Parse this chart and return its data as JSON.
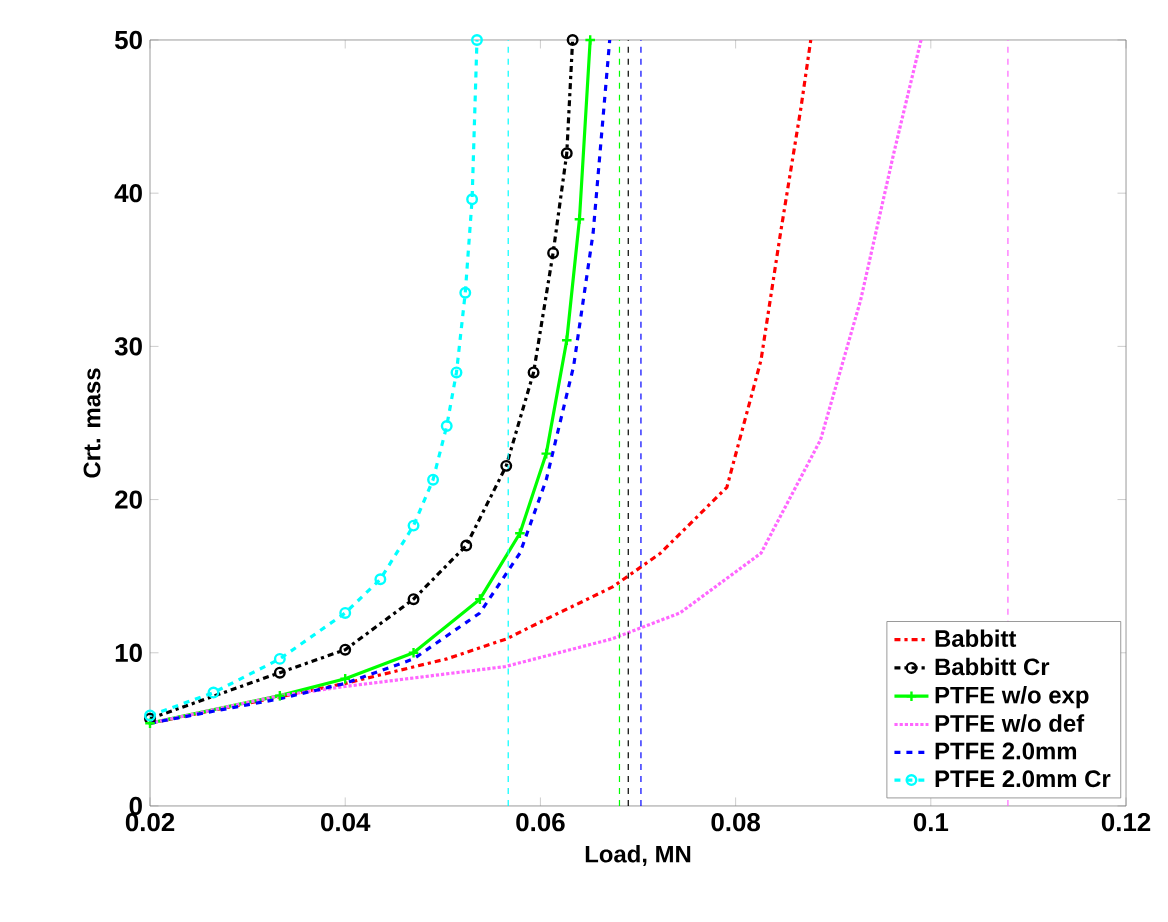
{
  "chart_data": {
    "type": "line",
    "xlabel": "Load, MN",
    "ylabel": "Crt. mass",
    "xlim": [
      0.02,
      0.12
    ],
    "ylim": [
      0,
      50
    ],
    "xticks": [
      0.02,
      0.04,
      0.06,
      0.08,
      0.1,
      0.12
    ],
    "yticks": [
      0,
      10,
      20,
      30,
      40,
      50
    ],
    "legend": "bottom right",
    "grid": false,
    "series": [
      {
        "name": "Babbitt",
        "color": "#ff0000",
        "line_style": "dashdot",
        "marker": "none",
        "x": [
          0.02,
          0.04,
          0.0504,
          0.0565,
          0.0606,
          0.0674,
          0.0723,
          0.0791,
          0.0826,
          0.0846,
          0.0867,
          0.0877
        ],
        "values": [
          5.4,
          8,
          9.6,
          10.9,
          12.2,
          14.3,
          16.5,
          20.8,
          29.1,
          37.4,
          45.6,
          50
        ]
      },
      {
        "name": "Babbitt Cr",
        "color": "#000000",
        "line_style": "dashdot",
        "marker": "circle",
        "x": [
          0.02,
          0.0333,
          0.04,
          0.047,
          0.0524,
          0.0565,
          0.0593,
          0.0613,
          0.0627,
          0.0633
        ],
        "values": [
          5.7,
          8.7,
          10.2,
          13.5,
          17,
          22.2,
          28.3,
          36.1,
          42.6,
          50
        ]
      },
      {
        "name": "PTFE w/o exp",
        "color": "#00ff00",
        "line_style": "solid",
        "marker": "cross",
        "x": [
          0.02,
          0.0333,
          0.04,
          0.047,
          0.0538,
          0.0579,
          0.0606,
          0.0627,
          0.064,
          0.0651
        ],
        "values": [
          5.4,
          7.2,
          8.3,
          10,
          13.5,
          17.8,
          23,
          30.4,
          38.3,
          50
        ]
      },
      {
        "name": "PTFE w/o def",
        "color": "#ff66ff",
        "line_style": "dotted",
        "marker": "none",
        "x": [
          0.02,
          0.0333,
          0.04,
          0.0564,
          0.0673,
          0.0743,
          0.0826,
          0.0887,
          0.0928,
          0.0962,
          0.099
        ],
        "values": [
          5.4,
          7.2,
          7.8,
          9.1,
          10.9,
          12.6,
          16.5,
          23.9,
          33,
          42.6,
          50
        ]
      },
      {
        "name": "PTFE 2.0mm",
        "color": "#0000ff",
        "line_style": "dashed",
        "marker": "none",
        "x": [
          0.02,
          0.0333,
          0.04,
          0.047,
          0.0538,
          0.0579,
          0.0606,
          0.0634,
          0.0654,
          0.0671
        ],
        "values": [
          5.4,
          7,
          8,
          9.6,
          12.6,
          16.5,
          21.3,
          28.7,
          37.4,
          50
        ]
      },
      {
        "name": "PTFE 2.0mm Cr",
        "color": "#00ffff",
        "line_style": "dashed",
        "marker": "circle",
        "x": [
          0.02,
          0.0265,
          0.0333,
          0.04,
          0.0436,
          0.047,
          0.049,
          0.0504,
          0.0514,
          0.0523,
          0.053,
          0.0535
        ],
        "values": [
          5.9,
          7.4,
          9.6,
          12.6,
          14.8,
          18.3,
          21.3,
          24.8,
          28.3,
          33.5,
          39.6,
          50
        ]
      }
    ],
    "ref_lines": [
      {
        "axis": "x",
        "value": 0.0567,
        "color": "#00ffff",
        "line_style": "dashed"
      },
      {
        "axis": "x",
        "value": 0.0681,
        "color": "#00ff00",
        "line_style": "dashed"
      },
      {
        "axis": "x",
        "value": 0.069,
        "color": "#000000",
        "line_style": "dashed"
      },
      {
        "axis": "x",
        "value": 0.0703,
        "color": "#0000ff",
        "line_style": "dashed"
      },
      {
        "axis": "x",
        "value": 0.1079,
        "color": "#ff66ff",
        "line_style": "dashed"
      }
    ]
  }
}
